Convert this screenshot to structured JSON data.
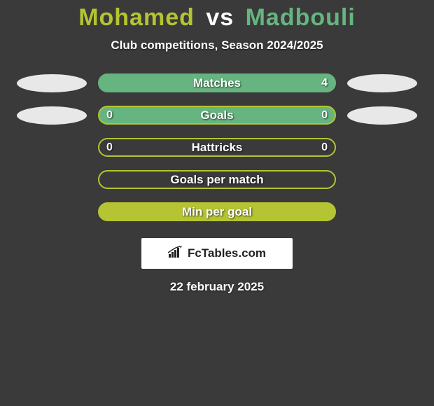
{
  "header": {
    "player1": "Mohamed",
    "vs": "vs",
    "player2": "Madbouli",
    "subtitle": "Club competitions, Season 2024/2025"
  },
  "colors": {
    "player1_accent": "#b5c432",
    "player2_accent": "#66b580",
    "background": "#3a3a3a",
    "ellipse_left": "#e8e8e8",
    "ellipse_right": "#e8e8e8",
    "bar_border_default": "#b5c432",
    "bar_fill_green": "#66b580",
    "text_white": "#ffffff"
  },
  "stats": [
    {
      "label": "Matches",
      "left_val": "",
      "right_val": "4",
      "left_ellipse": true,
      "right_ellipse": true,
      "bar_bg": "#66b580",
      "bar_border": "#66b580"
    },
    {
      "label": "Goals",
      "left_val": "0",
      "right_val": "0",
      "left_ellipse": true,
      "right_ellipse": true,
      "bar_bg": "#66b580",
      "bar_border": "#b5c432"
    },
    {
      "label": "Hattricks",
      "left_val": "0",
      "right_val": "0",
      "left_ellipse": false,
      "right_ellipse": false,
      "bar_bg": "transparent",
      "bar_border": "#b5c432"
    },
    {
      "label": "Goals per match",
      "left_val": "",
      "right_val": "",
      "left_ellipse": false,
      "right_ellipse": false,
      "bar_bg": "transparent",
      "bar_border": "#b5c432"
    },
    {
      "label": "Min per goal",
      "left_val": "",
      "right_val": "",
      "left_ellipse": false,
      "right_ellipse": false,
      "bar_bg": "#b5c432",
      "bar_border": "#b5c432"
    }
  ],
  "brand": {
    "name": "FcTables.com"
  },
  "footer": {
    "date": "22 february 2025"
  }
}
